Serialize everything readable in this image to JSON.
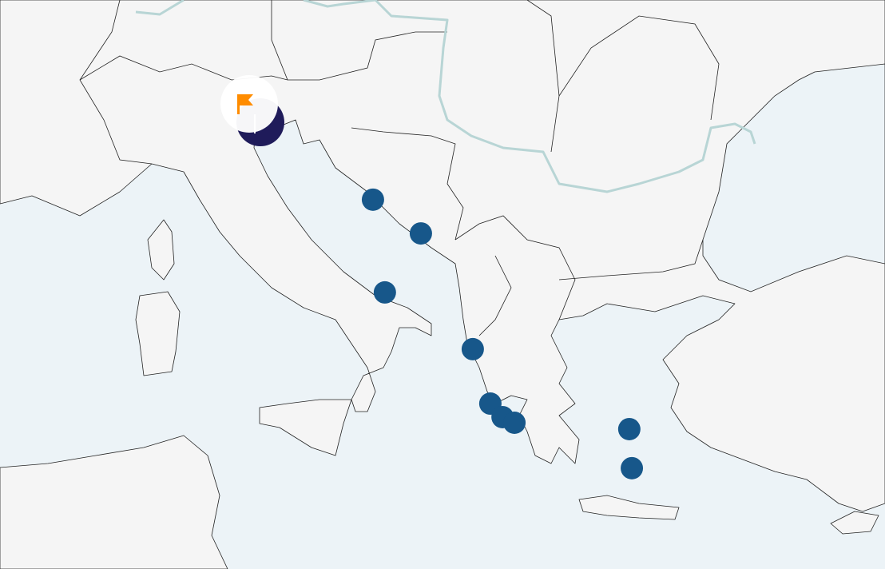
{
  "map": {
    "colors": {
      "land": "#f5f5f5",
      "sea": "#ecf3f7",
      "river": "#b8d5d5",
      "marker": "#17578a",
      "selected_marker": "#1f1b5a",
      "flag": "#ff8c00"
    },
    "projection_reference": {
      "lon": 12.3,
      "lat": 45.4
    },
    "selected_marker": {
      "lon": 12.3,
      "lat": 45.4,
      "icon": "flag-icon"
    },
    "markers": [
      {
        "lon": 16.27,
        "lat": 43.34
      },
      {
        "lon": 17.96,
        "lat": 42.44
      },
      {
        "lon": 16.69,
        "lat": 40.87
      },
      {
        "lon": 19.79,
        "lat": 39.36
      },
      {
        "lon": 20.41,
        "lat": 37.91
      },
      {
        "lon": 20.84,
        "lat": 37.55
      },
      {
        "lon": 21.26,
        "lat": 37.4
      },
      {
        "lon": 25.31,
        "lat": 37.23
      },
      {
        "lon": 25.4,
        "lat": 36.19
      }
    ]
  }
}
